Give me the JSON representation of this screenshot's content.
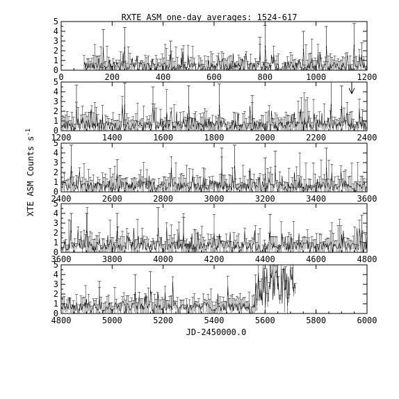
{
  "chart_data": {
    "type": "line",
    "title": "RXTE ASM one-day averages: 1524-617",
    "xlabel": "JD-2450000.0",
    "ylabel": "XTE ASM Counts s",
    "ylabel_superscript": "-1",
    "ylim": [
      0,
      5
    ],
    "y_ticks": [
      0,
      1,
      2,
      3,
      4,
      5
    ],
    "grid": false,
    "panels": [
      {
        "xlim": [
          0,
          1200
        ],
        "x_ticks": [
          0,
          200,
          400,
          600,
          800,
          1000,
          1200
        ],
        "data_start": 90,
        "data_end": 1200,
        "level": 0.35
      },
      {
        "xlim": [
          1200,
          2400
        ],
        "x_ticks": [
          1200,
          1400,
          1600,
          1800,
          2000,
          2200,
          2400
        ],
        "data_start": 1200,
        "data_end": 2400,
        "level": 0.5
      },
      {
        "xlim": [
          2400,
          3600
        ],
        "x_ticks": [
          2400,
          2600,
          2800,
          3000,
          3200,
          3400,
          3600
        ],
        "data_start": 2400,
        "data_end": 3600,
        "level": 0.55
      },
      {
        "xlim": [
          3600,
          4800
        ],
        "x_ticks": [
          3600,
          3800,
          4000,
          4200,
          4400,
          4600,
          4800
        ],
        "data_start": 3600,
        "data_end": 4800,
        "level": 0.6
      },
      {
        "xlim": [
          4800,
          6000
        ],
        "x_ticks": [
          4800,
          5000,
          5200,
          5400,
          5600,
          5800,
          6000
        ],
        "data_start": 4800,
        "data_end": 5720,
        "level": 0.65
      }
    ],
    "peaks": [
      {
        "x": 165,
        "y": 4.2
      },
      {
        "x": 250,
        "y": 4.4
      },
      {
        "x": 430,
        "y": 3.0
      },
      {
        "x": 780,
        "y": 3.4
      },
      {
        "x": 800,
        "y": 4.6
      },
      {
        "x": 950,
        "y": 4.0
      },
      {
        "x": 1040,
        "y": 4.5
      },
      {
        "x": 1150,
        "y": 4.8
      },
      {
        "x": 1180,
        "y": 2.8
      },
      {
        "x": 1260,
        "y": 4.7
      },
      {
        "x": 1450,
        "y": 4.9
      },
      {
        "x": 1560,
        "y": 4.5
      },
      {
        "x": 1700,
        "y": 4.6
      },
      {
        "x": 1820,
        "y": 4.8
      },
      {
        "x": 1950,
        "y": 3.6
      },
      {
        "x": 2260,
        "y": 5.0
      },
      {
        "x": 2300,
        "y": 4.6
      },
      {
        "x": 2440,
        "y": 4.8
      },
      {
        "x": 2620,
        "y": 3.3
      },
      {
        "x": 3030,
        "y": 4.5
      },
      {
        "x": 3080,
        "y": 4.8
      },
      {
        "x": 3200,
        "y": 3.5
      },
      {
        "x": 3240,
        "y": 4.2
      },
      {
        "x": 3440,
        "y": 4.5
      },
      {
        "x": 3640,
        "y": 4.0
      },
      {
        "x": 3700,
        "y": 4.0
      },
      {
        "x": 3820,
        "y": 4.0
      },
      {
        "x": 3980,
        "y": 4.6
      },
      {
        "x": 4080,
        "y": 3.6
      },
      {
        "x": 4420,
        "y": 3.9
      },
      {
        "x": 4780,
        "y": 3.8
      },
      {
        "x": 4950,
        "y": 3.3
      },
      {
        "x": 5090,
        "y": 4.0
      },
      {
        "x": 5150,
        "y": 4.3
      },
      {
        "x": 5620,
        "y": 5.0
      },
      {
        "x": 5650,
        "y": 5.0
      },
      {
        "x": 5680,
        "y": 4.8
      },
      {
        "x": 5710,
        "y": 5.0
      }
    ],
    "annotation_arrow": {
      "x": 2340,
      "y_from": 5.0,
      "y_to": 3.8
    }
  }
}
